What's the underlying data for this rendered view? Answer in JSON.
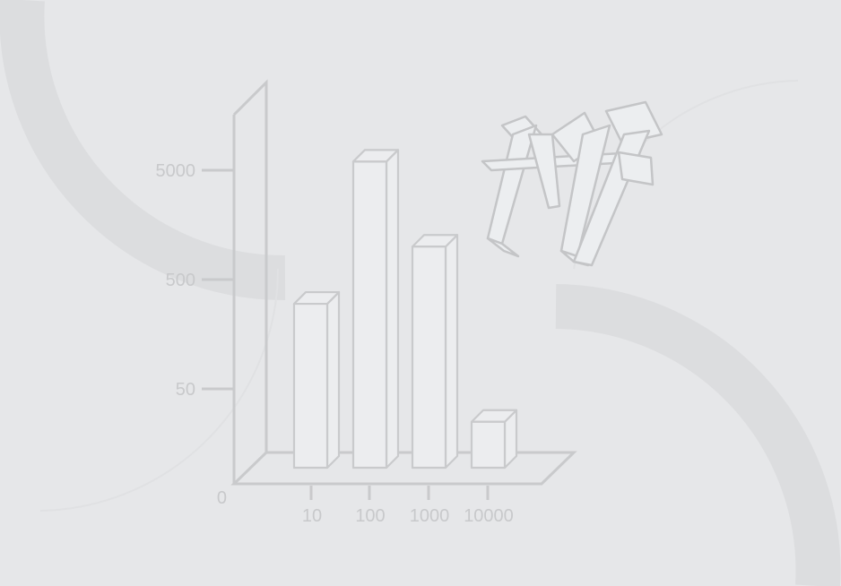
{
  "colors": {
    "background": "#e6e7e9",
    "arc": "#dcdddf",
    "stroke": "#c9cacc",
    "bar_fill": "#ecedef",
    "label": "#c8c9cb"
  },
  "chart_data": {
    "type": "bar",
    "style": "3d",
    "yscale": "log",
    "categories": [
      "10",
      "100",
      "1000",
      "10000"
    ],
    "values": [
      300,
      6000,
      1000,
      25
    ],
    "yticks": [
      0,
      50,
      500,
      5000
    ],
    "ytick_labels": [
      "0",
      "50",
      "500",
      "5000"
    ],
    "xtick_labels": [
      "10",
      "100",
      "1000",
      "10000"
    ],
    "grid": false
  },
  "logo": {
    "text": "IW",
    "icon": "iw-3d-monogram-logo"
  }
}
